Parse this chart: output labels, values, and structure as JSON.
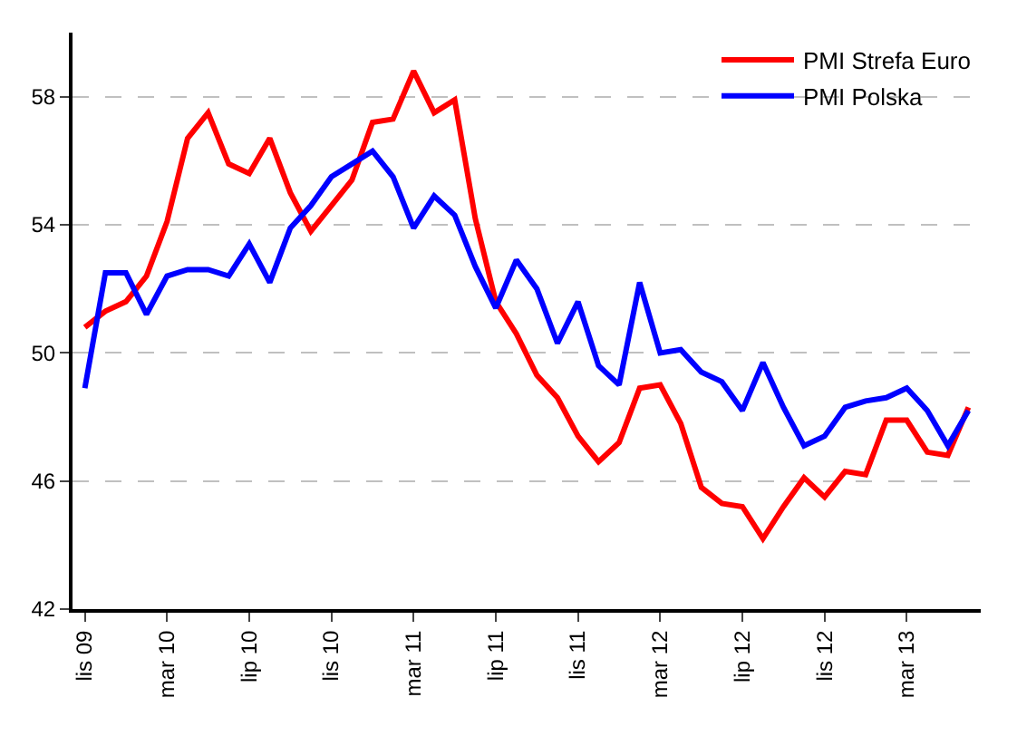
{
  "chart_data": {
    "type": "line",
    "categories": [
      "lis 09",
      null,
      null,
      null,
      "mar 10",
      null,
      null,
      null,
      "lip 10",
      null,
      null,
      null,
      "lis 10",
      null,
      null,
      null,
      "mar 11",
      null,
      null,
      null,
      "lip 11",
      null,
      null,
      null,
      "lis 11",
      null,
      null,
      null,
      "mar 12",
      null,
      null,
      null,
      "lip 12",
      null,
      null,
      null,
      "lis 12",
      null,
      null,
      null,
      "mar 13",
      null,
      null,
      null
    ],
    "series": [
      {
        "name": "PMI Strefa Euro",
        "color": "#ff0000",
        "values": [
          50.8,
          51.3,
          51.6,
          52.4,
          54.1,
          56.7,
          57.5,
          55.9,
          55.6,
          56.7,
          55.0,
          53.8,
          54.6,
          55.4,
          57.2,
          57.3,
          58.8,
          57.5,
          57.9,
          54.2,
          51.6,
          50.6,
          49.3,
          48.6,
          47.4,
          46.6,
          47.2,
          48.9,
          49.0,
          47.8,
          45.8,
          45.3,
          45.2,
          44.2,
          45.2,
          46.1,
          45.5,
          46.3,
          46.2,
          47.9,
          47.9,
          46.9,
          46.8,
          48.3
        ]
      },
      {
        "name": "PMI Polska",
        "color": "#0000ff",
        "values": [
          48.9,
          52.5,
          52.5,
          51.2,
          52.4,
          52.6,
          52.6,
          52.4,
          53.4,
          52.2,
          53.9,
          54.6,
          55.5,
          55.9,
          56.3,
          55.5,
          53.9,
          54.9,
          54.3,
          52.7,
          51.4,
          52.9,
          52.0,
          50.3,
          51.6,
          49.6,
          49.0,
          52.2,
          50.0,
          50.1,
          49.4,
          49.1,
          48.2,
          49.7,
          48.3,
          47.1,
          47.4,
          48.3,
          48.5,
          48.6,
          48.9,
          48.2,
          47.1,
          48.2
        ]
      }
    ],
    "ylim": [
      42,
      60
    ],
    "yticks": [
      42,
      46,
      50,
      54,
      58
    ],
    "grid": "y",
    "legend": "top right",
    "marker": "none",
    "line_style": "solid"
  }
}
